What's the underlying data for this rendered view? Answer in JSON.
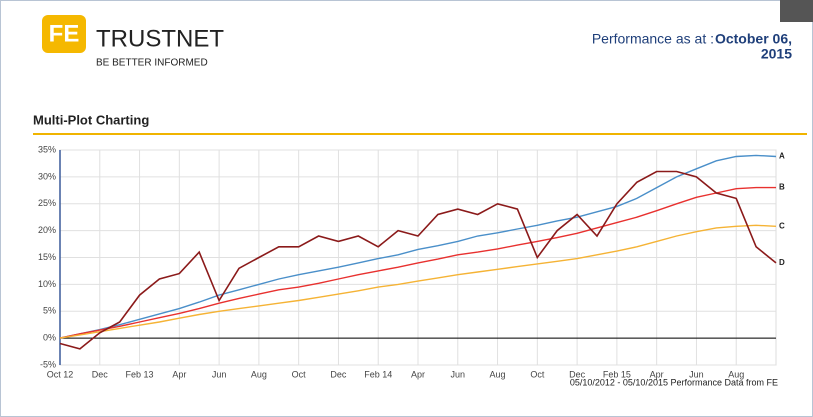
{
  "header": {
    "logo": "FE",
    "brand": "TRUSTNET",
    "tagline": "BE BETTER INFORMED",
    "performance_label": "Performance as at :",
    "performance_date": "October 06,",
    "performance_year": "2015"
  },
  "section_title": "Multi-Plot Charting",
  "footer_note": "05/10/2012 - 05/10/2015 Performance Data from FE",
  "chart_data": {
    "type": "line",
    "categories": [
      "Oct 12",
      null,
      "Dec",
      null,
      "Feb 13",
      null,
      "Apr",
      null,
      "Jun",
      null,
      "Aug",
      null,
      "Oct",
      null,
      "Dec",
      null,
      "Feb 14",
      null,
      "Apr",
      null,
      "Jun",
      null,
      "Aug",
      null,
      "Oct",
      null,
      "Dec",
      null,
      "Feb 15",
      null,
      "Apr",
      null,
      "Jun",
      null,
      "Aug",
      null,
      null
    ],
    "series": [
      {
        "name": "A",
        "color": "#4a8fc9",
        "values": [
          0,
          0.8,
          1.6,
          2.5,
          3.5,
          4.5,
          5.5,
          6.7,
          8,
          9,
          10,
          11,
          11.8,
          12.5,
          13.2,
          14,
          14.8,
          15.5,
          16.5,
          17.2,
          18,
          19,
          19.6,
          20.3,
          21,
          21.8,
          22.5,
          23.5,
          24.5,
          26,
          28,
          30,
          31.5,
          33,
          33.8,
          34,
          33.8
        ]
      },
      {
        "name": "B",
        "color": "#e8312f",
        "values": [
          0,
          0.8,
          1.5,
          2.2,
          3,
          3.8,
          4.6,
          5.5,
          6.5,
          7.4,
          8.2,
          9,
          9.5,
          10.2,
          11,
          11.8,
          12.5,
          13.2,
          14,
          14.7,
          15.5,
          16,
          16.6,
          17.3,
          18,
          18.7,
          19.5,
          20.5,
          21.5,
          22.5,
          23.7,
          25,
          26.2,
          27,
          27.8,
          28,
          28
        ]
      },
      {
        "name": "C",
        "color": "#f5b335",
        "values": [
          0,
          0.6,
          1.2,
          1.8,
          2.4,
          3,
          3.7,
          4.4,
          5,
          5.5,
          6,
          6.5,
          7,
          7.6,
          8.2,
          8.8,
          9.5,
          10,
          10.6,
          11.2,
          11.8,
          12.3,
          12.8,
          13.3,
          13.8,
          14.3,
          14.8,
          15.5,
          16.2,
          17,
          18,
          19,
          19.8,
          20.5,
          20.8,
          21,
          20.8
        ]
      },
      {
        "name": "D",
        "color": "#8b1a1a",
        "values": [
          -1,
          -2,
          1,
          3,
          8,
          11,
          12,
          16,
          7,
          13,
          15,
          17,
          17,
          19,
          18,
          19,
          17,
          20,
          19,
          23,
          24,
          23,
          25,
          24,
          15,
          20,
          23,
          19,
          25,
          29,
          31,
          31,
          30,
          27,
          26,
          17,
          14
        ]
      }
    ],
    "ylim": [
      -5,
      35
    ],
    "yticks": [
      {
        "value": -5,
        "label": "-5%"
      },
      {
        "value": 0,
        "label": "0%"
      },
      {
        "value": 5,
        "label": "5%"
      },
      {
        "value": 10,
        "label": "10%"
      },
      {
        "value": 15,
        "label": "15%"
      },
      {
        "value": 20,
        "label": "20%"
      },
      {
        "value": 25,
        "label": "25%"
      },
      {
        "value": 30,
        "label": "30%"
      },
      {
        "value": 35,
        "label": "35%"
      }
    ],
    "grid": true
  }
}
